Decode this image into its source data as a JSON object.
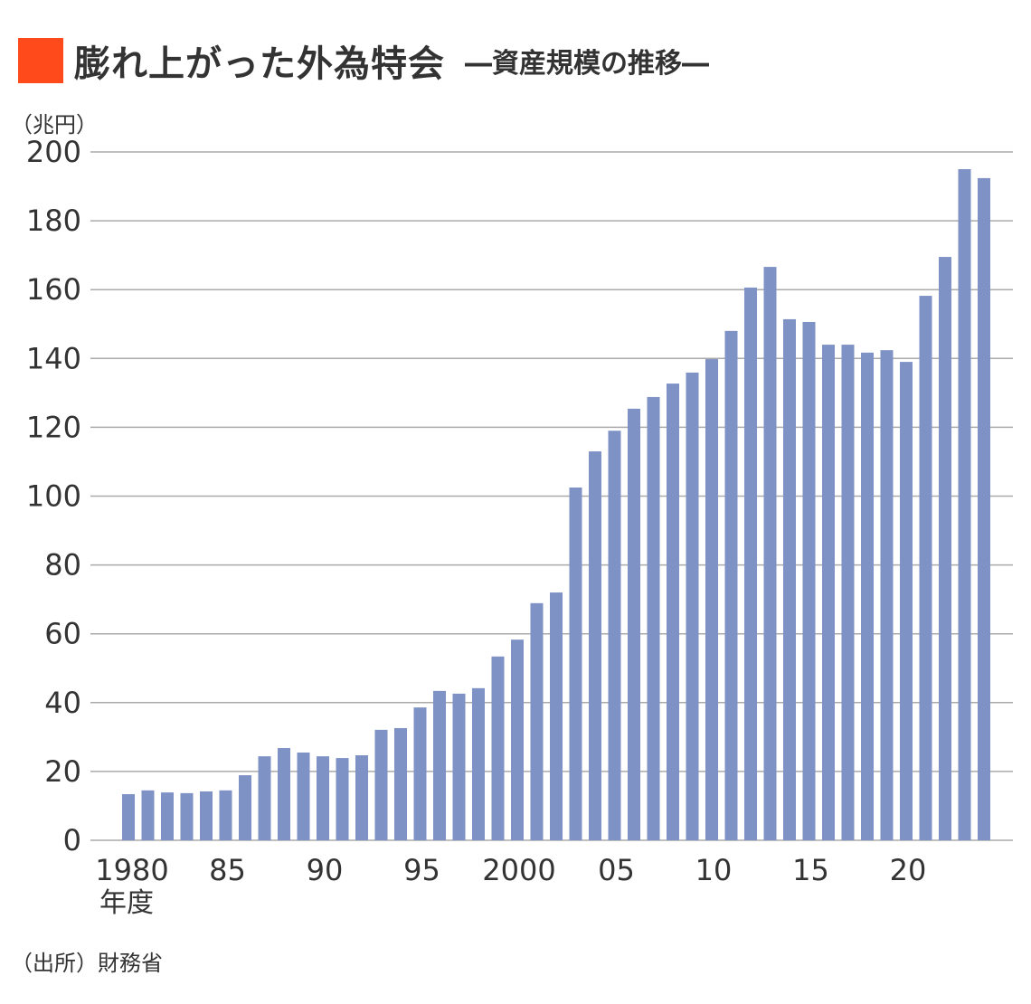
{
  "title": "膨れ上がった外為特会",
  "subtitle": "―資産規模の推移―",
  "unit_label": "（兆円）",
  "source": "（出所）財務省",
  "colors": {
    "accent": "#FF4A1C",
    "bar": "#7F92C6",
    "grid": "#AAAAAA"
  },
  "chart_data": {
    "type": "bar",
    "title": "膨れ上がった外為特会 ―資産規模の推移―",
    "xlabel": "年度",
    "ylabel": "兆円",
    "ylim": [
      0,
      200
    ],
    "yticks": [
      "0",
      "20",
      "40",
      "60",
      "80",
      "100",
      "120",
      "140",
      "160",
      "180",
      "200"
    ],
    "grid": true,
    "categories": [
      1980,
      1981,
      1982,
      1983,
      1984,
      1985,
      1986,
      1987,
      1988,
      1989,
      1990,
      1991,
      1992,
      1993,
      1994,
      1995,
      1996,
      1997,
      1998,
      1999,
      2000,
      2001,
      2002,
      2003,
      2004,
      2005,
      2006,
      2007,
      2008,
      2009,
      2010,
      2011,
      2012,
      2013,
      2014,
      2015,
      2016,
      2017,
      2018,
      2019,
      2020,
      2021,
      2022,
      2023,
      2024
    ],
    "xtick_labels": [
      {
        "index": 0,
        "label": "1980"
      },
      {
        "index": 5,
        "label": "85"
      },
      {
        "index": 10,
        "label": "90"
      },
      {
        "index": 15,
        "label": "95"
      },
      {
        "index": 20,
        "label": "2000"
      },
      {
        "index": 25,
        "label": "05"
      },
      {
        "index": 30,
        "label": "10"
      },
      {
        "index": 35,
        "label": "15"
      },
      {
        "index": 40,
        "label": "20"
      }
    ],
    "values": [
      13.4,
      14.5,
      13.9,
      13.7,
      14.2,
      14.5,
      18.9,
      24.4,
      26.8,
      25.5,
      24.4,
      23.9,
      24.7,
      32.1,
      32.6,
      38.6,
      43.4,
      42.6,
      44.2,
      53.4,
      58.3,
      68.9,
      72.0,
      102.5,
      113.0,
      119.0,
      125.4,
      128.8,
      132.7,
      135.9,
      139.8,
      148.0,
      160.6,
      166.6,
      151.4,
      150.6,
      144.0,
      144.0,
      141.7,
      142.4,
      139.0,
      158.2,
      169.5,
      195.0,
      192.4
    ]
  }
}
